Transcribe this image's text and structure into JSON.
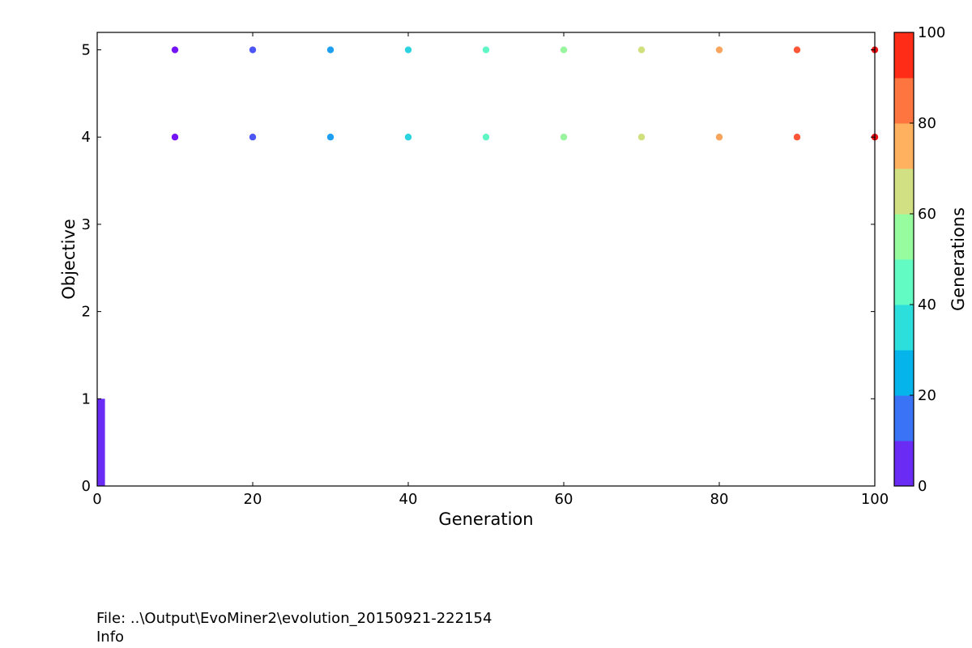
{
  "chart_data": {
    "type": "scatter",
    "title": "",
    "xlabel": "Generation",
    "ylabel": "Objective",
    "xlim": [
      0,
      100
    ],
    "ylim": [
      0,
      5.2
    ],
    "xticks": [
      0,
      20,
      40,
      60,
      80,
      100
    ],
    "yticks": [
      0,
      1,
      2,
      3,
      4,
      5
    ],
    "grid": false,
    "bar": {
      "x_start": 0,
      "x_end": 1,
      "value": 1,
      "color": "#6a2bf5"
    },
    "points": [
      {
        "x": 10,
        "y": 5,
        "color": "#7413f5"
      },
      {
        "x": 10,
        "y": 4,
        "color": "#7413f5"
      },
      {
        "x": 20,
        "y": 5,
        "color": "#4c56f5"
      },
      {
        "x": 20,
        "y": 4,
        "color": "#4c56f5"
      },
      {
        "x": 30,
        "y": 5,
        "color": "#1e9ef0"
      },
      {
        "x": 30,
        "y": 4,
        "color": "#1e9ef0"
      },
      {
        "x": 40,
        "y": 5,
        "color": "#2ad3dd"
      },
      {
        "x": 40,
        "y": 4,
        "color": "#2ad3dd"
      },
      {
        "x": 50,
        "y": 5,
        "color": "#5ff5c5"
      },
      {
        "x": 50,
        "y": 4,
        "color": "#5ff5c5"
      },
      {
        "x": 60,
        "y": 5,
        "color": "#98f59e"
      },
      {
        "x": 60,
        "y": 4,
        "color": "#98f59e"
      },
      {
        "x": 70,
        "y": 5,
        "color": "#d0e07d"
      },
      {
        "x": 70,
        "y": 4,
        "color": "#d0e07d"
      },
      {
        "x": 80,
        "y": 5,
        "color": "#f8a45c"
      },
      {
        "x": 80,
        "y": 4,
        "color": "#f8a45c"
      },
      {
        "x": 90,
        "y": 5,
        "color": "#fa5537"
      },
      {
        "x": 90,
        "y": 4,
        "color": "#fa5537"
      },
      {
        "x": 100,
        "y": 5,
        "color": "#e81010"
      },
      {
        "x": 100,
        "y": 4,
        "color": "#e81010"
      }
    ],
    "colorbar": {
      "label": "Generations",
      "range": [
        0,
        100
      ],
      "ticks": [
        0,
        20,
        40,
        60,
        80,
        100
      ],
      "colors": [
        "#6a2bf5",
        "#3a73f5",
        "#04b4ea",
        "#2cdedc",
        "#62fbc4",
        "#97fc9e",
        "#d1e082",
        "#ffb15f",
        "#ff7540",
        "#ff2d17"
      ]
    }
  },
  "footer": {
    "file": "File: ..\\Output\\EvoMiner2\\evolution_20150921-222154",
    "info": "Info"
  }
}
